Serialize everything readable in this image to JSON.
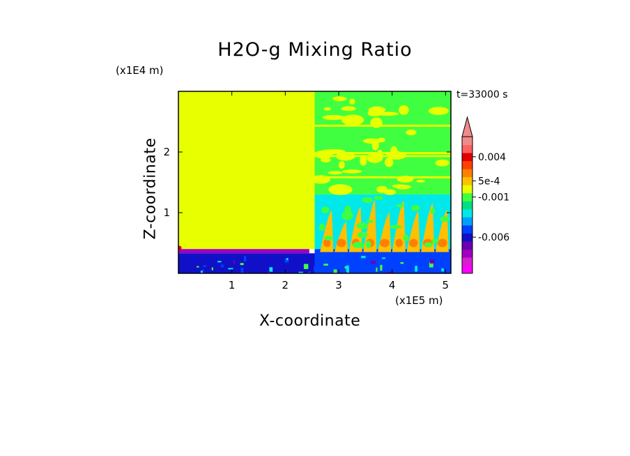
{
  "title": "H2O-g Mixing Ratio",
  "time_label": "t=33000 s",
  "chart_data": {
    "type": "heatmap",
    "title": "H2O-g Mixing Ratio",
    "xlabel": "X-coordinate",
    "ylabel": "Z-coordinate",
    "x_unit": "(x1E5 m)",
    "y_unit": "(x1E4 m)",
    "xlim": [
      0,
      5.1
    ],
    "ylim": [
      0,
      3.0
    ],
    "x_ticks": [
      "1",
      "2",
      "3",
      "4",
      "5"
    ],
    "x_tick_values": [
      1,
      2,
      3,
      4,
      5
    ],
    "y_ticks": [
      "1",
      "2"
    ],
    "y_tick_values": [
      1,
      2
    ],
    "annotation": "t=33000 s",
    "colorbar": {
      "labels": [
        "0.004",
        "5e-4",
        "-0.001",
        "-0.006"
      ],
      "label_values": [
        0.004,
        0.0005,
        -0.001,
        -0.006
      ],
      "colors": [
        "#ff00ff",
        "#d81fd0",
        "#a000c0",
        "#6a00b0",
        "#1010c8",
        "#0040ff",
        "#00a0ff",
        "#00e8e8",
        "#00e080",
        "#40ff40",
        "#e8ff00",
        "#ffc000",
        "#ff8000",
        "#ff4000",
        "#e00000",
        "#ff6060",
        "#f08a8a"
      ],
      "extend": "max"
    },
    "regions": [
      {
        "name": "upper-left-background",
        "x": [
          0,
          2.55
        ],
        "z": [
          0.4,
          3.0
        ],
        "color": "#e8ff00"
      },
      {
        "name": "upper-right-layered",
        "x": [
          2.55,
          5.1
        ],
        "z": [
          1.3,
          3.0
        ],
        "color": "#40ff40"
      },
      {
        "name": "mid-right-convective",
        "x": [
          2.55,
          5.1
        ],
        "z": [
          0.4,
          1.3
        ],
        "color": "#00e8e8"
      },
      {
        "name": "low-left-dry-band",
        "x": [
          0,
          2.45
        ],
        "z": [
          0.33,
          0.4
        ],
        "color": "#a000c0"
      },
      {
        "name": "surface-left",
        "x": [
          0,
          2.55
        ],
        "z": [
          0,
          0.33
        ],
        "color": "#1010c8"
      },
      {
        "name": "surface-right",
        "x": [
          2.55,
          5.1
        ],
        "z": [
          0,
          0.4
        ],
        "color": "#0040ff"
      }
    ]
  }
}
